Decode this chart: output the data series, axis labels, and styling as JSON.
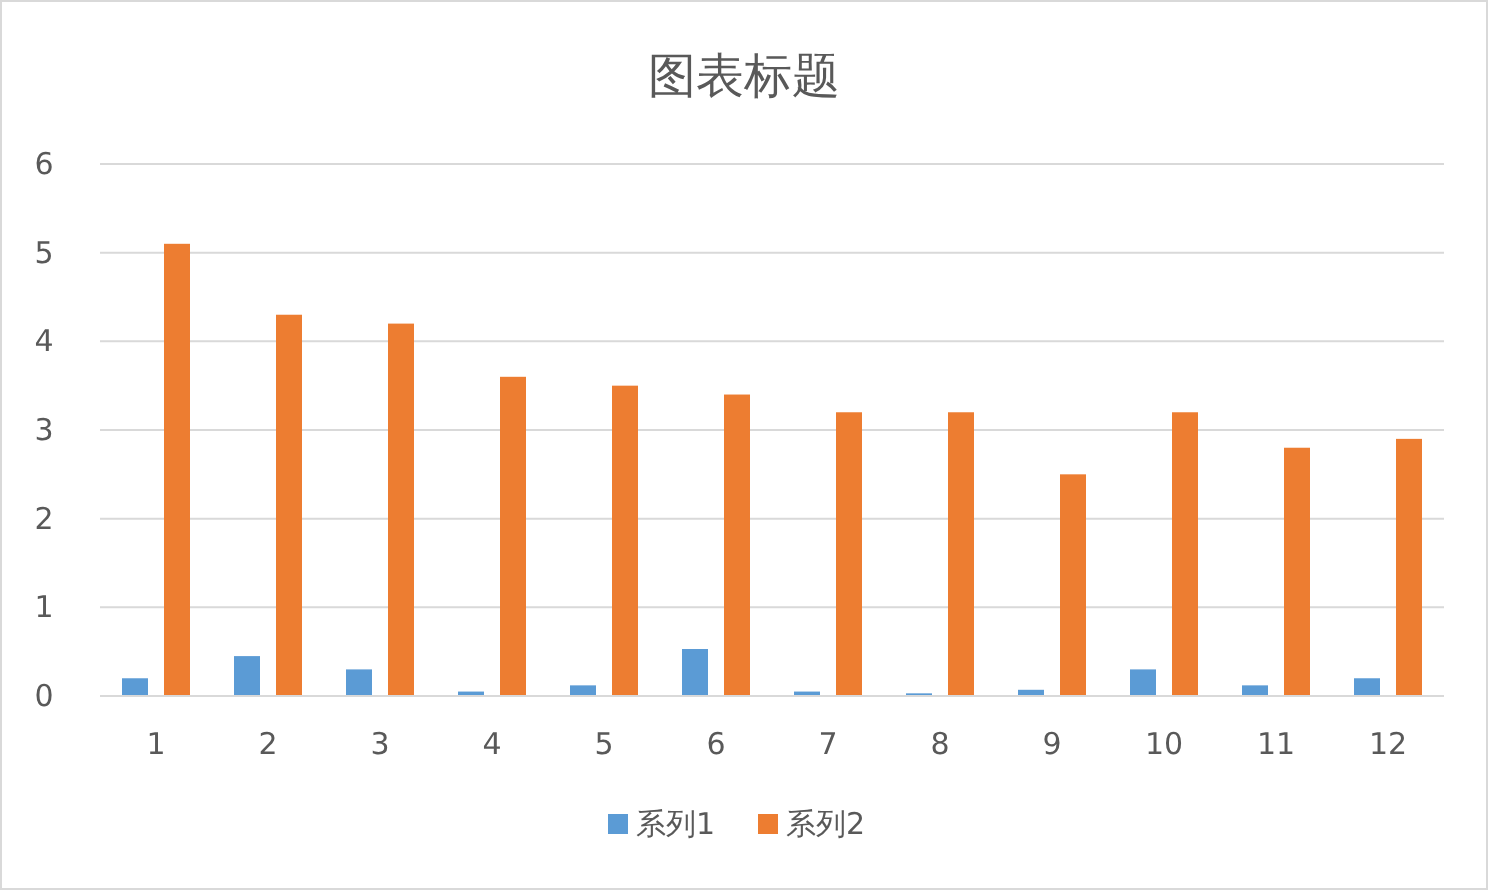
{
  "chart_data": {
    "type": "bar",
    "title": "图表标题",
    "categories": [
      "1",
      "2",
      "3",
      "4",
      "5",
      "6",
      "7",
      "8",
      "9",
      "10",
      "11",
      "12"
    ],
    "series": [
      {
        "name": "系列1",
        "color": "#5b9bd5",
        "values": [
          0.2,
          0.45,
          0.3,
          0.05,
          0.12,
          0.53,
          0.05,
          0.03,
          0.07,
          0.3,
          0.12,
          0.2
        ]
      },
      {
        "name": "系列2",
        "color": "#ed7d31",
        "values": [
          5.1,
          4.3,
          4.2,
          3.6,
          3.5,
          3.4,
          3.2,
          3.2,
          2.5,
          3.2,
          2.8,
          2.9
        ]
      }
    ],
    "ylim": [
      0,
      6
    ],
    "yticks": [
      0,
      1,
      2,
      3,
      4,
      5,
      6
    ],
    "grid": "y",
    "legend": "bottom"
  }
}
